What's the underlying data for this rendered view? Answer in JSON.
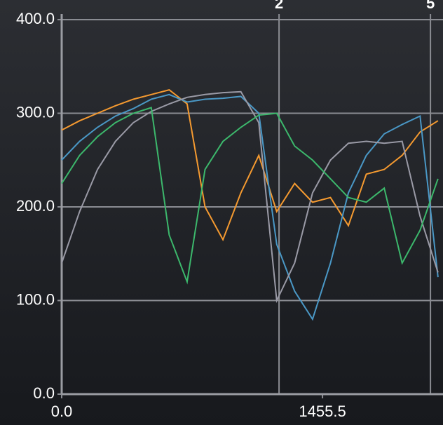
{
  "chart_data": {
    "type": "line",
    "x": [
      0,
      100,
      200,
      300,
      400,
      500,
      600,
      700,
      800,
      900,
      1000,
      1100,
      1200,
      1300,
      1400,
      1500,
      1600,
      1700,
      1800,
      1900,
      2000,
      2100
    ],
    "series": [
      {
        "color": "#f59a30",
        "values": [
          282,
          292,
          300,
          308,
          315,
          320,
          325,
          310,
          200,
          165,
          215,
          255,
          195,
          225,
          205,
          210,
          180,
          235,
          240,
          255,
          280,
          292
        ]
      },
      {
        "color": "#4a98c6",
        "values": [
          250,
          270,
          285,
          297,
          305,
          315,
          320,
          312,
          315,
          316,
          318,
          300,
          160,
          110,
          80,
          140,
          215,
          255,
          278,
          288,
          297,
          125
        ]
      },
      {
        "color": "#9a9aa6",
        "values": [
          140,
          195,
          240,
          270,
          290,
          302,
          310,
          317,
          320,
          322,
          323,
          290,
          100,
          140,
          215,
          250,
          268,
          270,
          268,
          270,
          190,
          130
        ]
      },
      {
        "color": "#3cb86c",
        "values": [
          225,
          255,
          275,
          290,
          300,
          306,
          170,
          120,
          240,
          270,
          285,
          298,
          300,
          265,
          250,
          230,
          210,
          205,
          220,
          140,
          175,
          230
        ]
      }
    ],
    "xlim": [
      0,
      2128
    ],
    "ylim": [
      0,
      400
    ],
    "xticks": [
      {
        "value": 0,
        "label": "0.0"
      },
      {
        "value": 1455.5,
        "label": "1455.5"
      }
    ],
    "yticks": [
      {
        "value": 0,
        "label": "0.0"
      },
      {
        "value": 100,
        "label": "100.0"
      },
      {
        "value": 200,
        "label": "200.0"
      },
      {
        "value": 300,
        "label": "300.0"
      },
      {
        "value": 400,
        "label": "400.0"
      }
    ],
    "markers": [
      {
        "label": "2",
        "x": 1213
      },
      {
        "label": "5",
        "x": 2058
      }
    ],
    "grid": true
  }
}
